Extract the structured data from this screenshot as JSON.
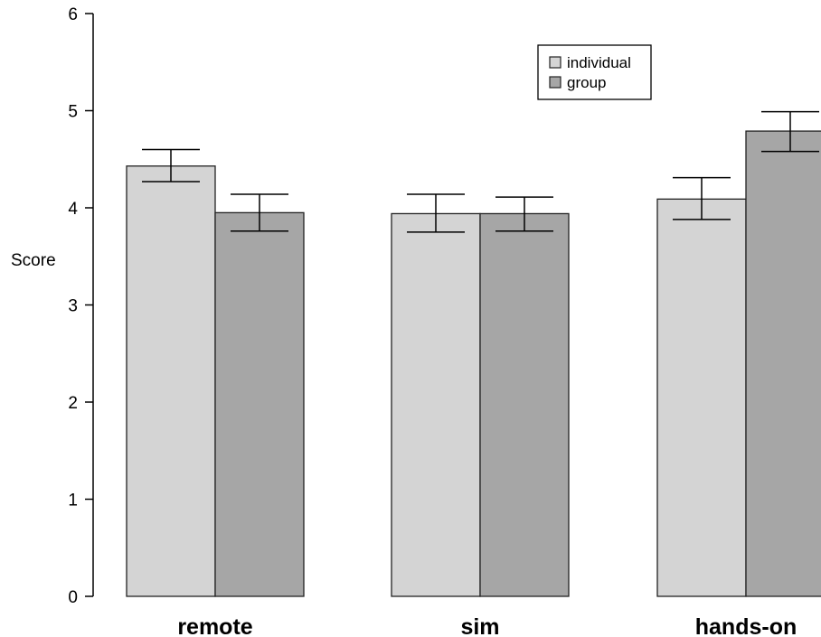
{
  "chart_data": {
    "type": "bar",
    "categories": [
      "remote",
      "sim",
      "hands-on"
    ],
    "series": [
      {
        "name": "individual",
        "color": "#d4d4d4",
        "values": [
          4.43,
          3.94,
          4.09
        ],
        "error_low": [
          4.27,
          3.75,
          3.88
        ],
        "error_high": [
          4.6,
          4.14,
          4.31
        ]
      },
      {
        "name": "group",
        "color": "#a6a6a6",
        "values": [
          3.95,
          3.94,
          4.79
        ],
        "error_low": [
          3.76,
          3.76,
          4.58
        ],
        "error_high": [
          4.14,
          4.11,
          4.99
        ]
      }
    ],
    "ylabel": "Score",
    "xlabel": "",
    "title": "",
    "ylim": [
      0,
      6
    ],
    "yticks": [
      "0",
      "1",
      "2",
      "3",
      "4",
      "5",
      "6"
    ],
    "grid": false,
    "legend_position": "top-right"
  }
}
